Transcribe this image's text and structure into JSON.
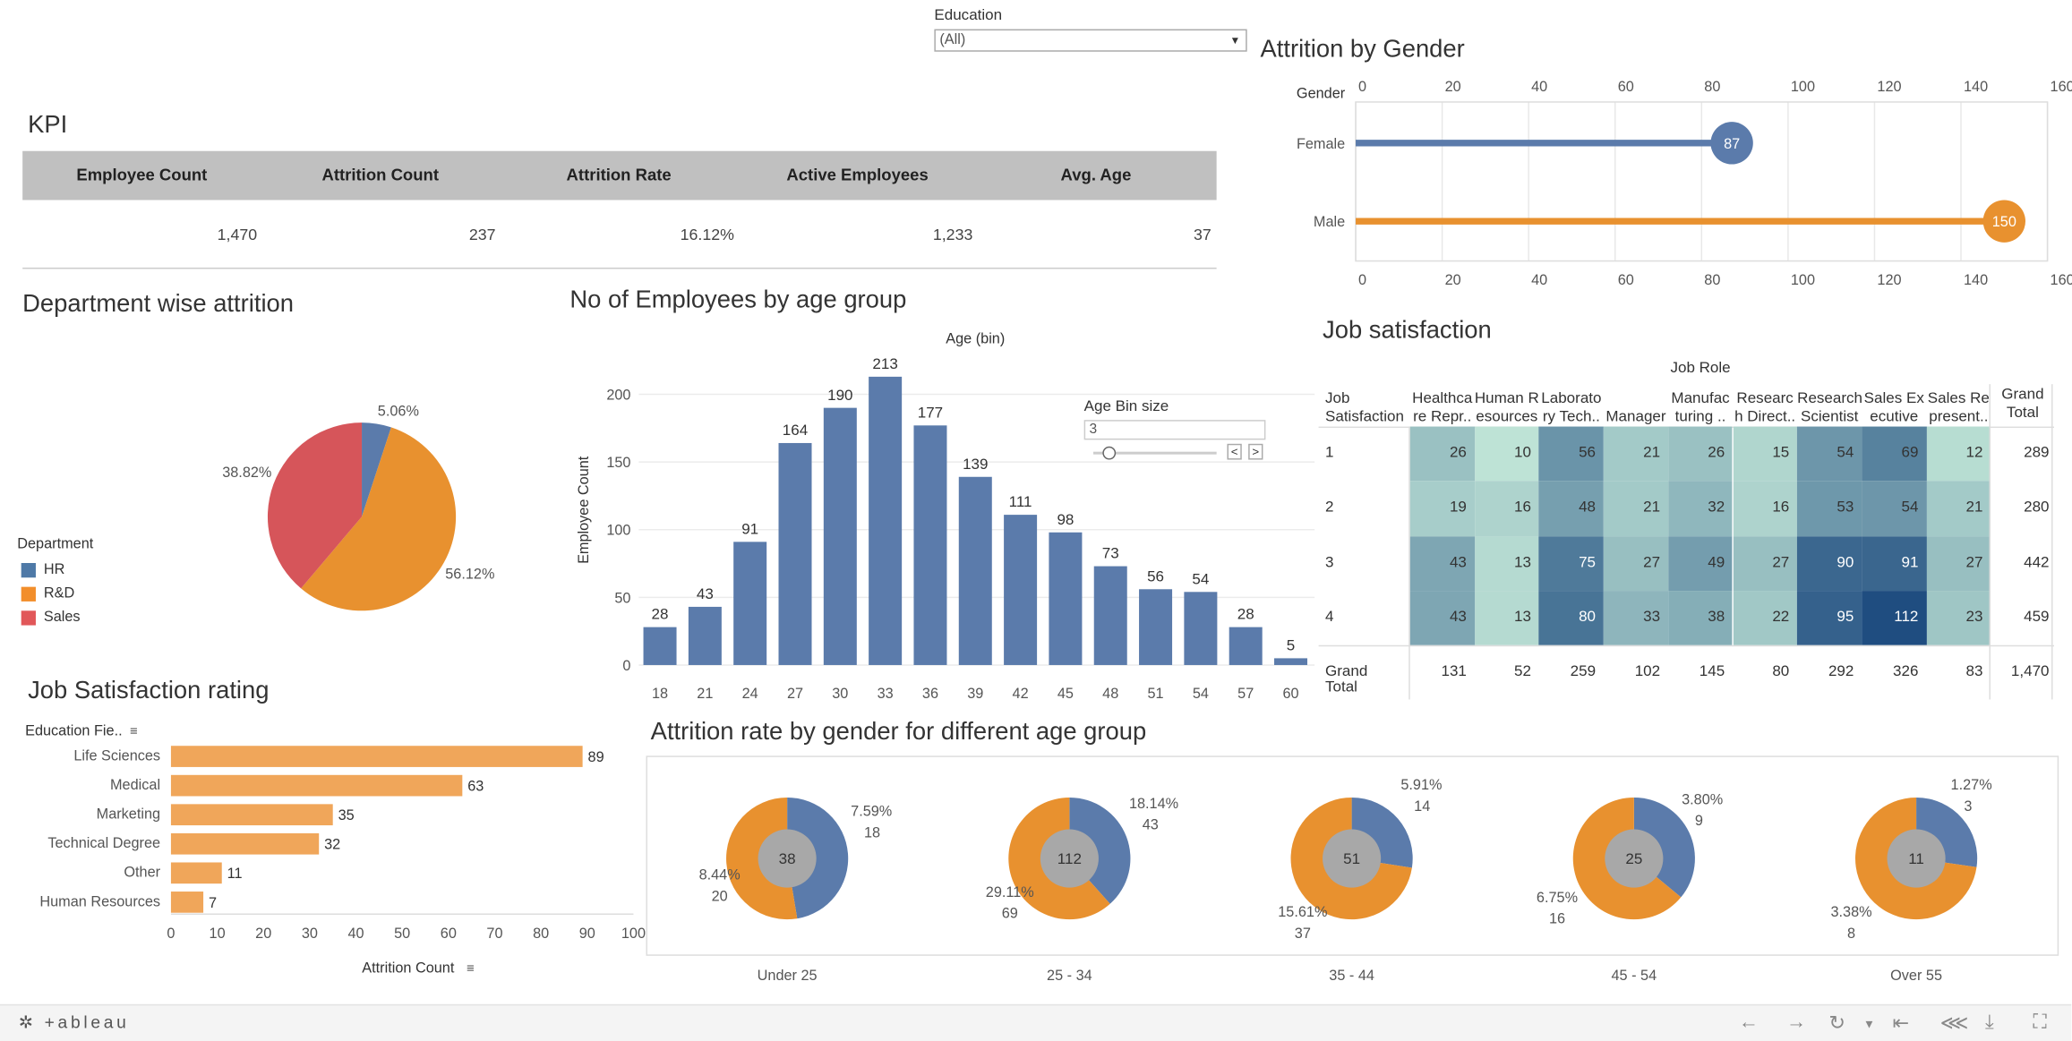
{
  "filter": {
    "label": "Education",
    "value": "(All)"
  },
  "kpi": {
    "title": "KPI",
    "headers": [
      "Employee Count",
      "Attrition Count",
      "Attrition Rate",
      "Active Employees",
      "Avg. Age"
    ],
    "values": [
      "1,470",
      "237",
      "16.12%",
      "1,233",
      "37"
    ]
  },
  "titles": {
    "gender": "Attrition by Gender",
    "department": "Department wise attrition",
    "age_group": "No of Employees by age group",
    "job_sat": "Job satisfaction",
    "edu_rating": "Job Satisfaction rating",
    "gender_age": "Attrition rate by gender for different age group"
  },
  "age_bin": {
    "label": "Age Bin size",
    "value": "3",
    "prev": "<",
    "next": ">"
  },
  "legend": {
    "title": "Department",
    "items": [
      {
        "name": "HR",
        "color": "#4e79a7"
      },
      {
        "name": "R&D",
        "color": "#f28e2b"
      },
      {
        "name": "Sales",
        "color": "#e15759"
      }
    ]
  },
  "chart_data": [
    {
      "id": "gender",
      "type": "lollipop",
      "title": "Attrition by Gender",
      "axis_header": "Gender",
      "categories": [
        "Female",
        "Male"
      ],
      "values": [
        87,
        150
      ],
      "colors": [
        "#5b7bab",
        "#e8912f"
      ],
      "xticks": [
        "0",
        "20",
        "40",
        "60",
        "80",
        "100",
        "120",
        "140",
        "160"
      ],
      "xlim": [
        0,
        160
      ]
    },
    {
      "id": "department",
      "type": "pie",
      "title": "Department wise attrition",
      "categories": [
        "HR",
        "R&D",
        "Sales"
      ],
      "values": [
        5.06,
        56.12,
        38.82
      ],
      "labels": [
        "5.06%",
        "56.12%",
        "38.82%"
      ],
      "colors": [
        "#5b7bab",
        "#e8912f",
        "#d6555a"
      ]
    },
    {
      "id": "age_group",
      "type": "bar",
      "title": "No of Employees by age group",
      "xlabel": "Age (bin)",
      "ylabel": "Employee Count",
      "categories": [
        "18",
        "21",
        "24",
        "27",
        "30",
        "33",
        "36",
        "39",
        "42",
        "45",
        "48",
        "51",
        "54",
        "57",
        "60"
      ],
      "values": [
        28,
        43,
        91,
        164,
        190,
        213,
        177,
        139,
        111,
        98,
        73,
        56,
        54,
        28,
        5
      ],
      "yticks": [
        "0",
        "50",
        "100",
        "150",
        "200"
      ],
      "ylim": [
        0,
        230
      ],
      "color": "#5b7bab"
    },
    {
      "id": "job_sat",
      "type": "heatmap",
      "title": "Job satisfaction",
      "column_group": "Job Role",
      "row_header": [
        "Job",
        "Satisfaction"
      ],
      "columns": [
        [
          "Healthca",
          "re Repr.."
        ],
        [
          "Human R",
          "esources"
        ],
        [
          "Laborato",
          "ry Tech.."
        ],
        [
          "",
          "Manager"
        ],
        [
          "Manufac",
          "turing .."
        ],
        [
          "Researc",
          "h Direct.."
        ],
        [
          "Research",
          "Scientist"
        ],
        [
          "Sales Ex",
          "ecutive"
        ],
        [
          "Sales Re",
          "present.."
        ]
      ],
      "total_header": [
        "Grand",
        "Total"
      ],
      "rows": [
        "1",
        "2",
        "3",
        "4"
      ],
      "values": [
        [
          26,
          10,
          56,
          21,
          26,
          15,
          54,
          69,
          12
        ],
        [
          19,
          16,
          48,
          21,
          32,
          16,
          53,
          54,
          21
        ],
        [
          43,
          13,
          75,
          27,
          49,
          27,
          90,
          91,
          27
        ],
        [
          43,
          13,
          80,
          33,
          38,
          22,
          95,
          112,
          23
        ]
      ],
      "row_totals": [
        "289",
        "280",
        "442",
        "459"
      ],
      "total_label": "Grand Total",
      "col_totals": [
        "131",
        "52",
        "259",
        "102",
        "145",
        "80",
        "292",
        "326",
        "83"
      ],
      "grand_total": "1,470"
    },
    {
      "id": "edu_rating",
      "type": "bar",
      "orientation": "horizontal",
      "title": "Job Satisfaction rating",
      "axis_header": "Education Fie..",
      "xlabel": "Attrition Count",
      "categories": [
        "Life Sciences",
        "Medical",
        "Marketing",
        "Technical Degree",
        "Other",
        "Human Resources"
      ],
      "values": [
        89,
        63,
        35,
        32,
        11,
        7
      ],
      "xticks": [
        "0",
        "10",
        "20",
        "30",
        "40",
        "50",
        "60",
        "70",
        "80",
        "90",
        "100"
      ],
      "xlim": [
        0,
        100
      ],
      "color": "#f0a65a"
    },
    {
      "id": "gender_age",
      "type": "pie",
      "title": "Attrition rate by gender for different age group",
      "groups": [
        {
          "name": "Under 25",
          "center": "38",
          "blue_pct": "7.59%",
          "blue_count": "18",
          "orange_pct": "8.44%",
          "orange_count": "20",
          "blue": 18,
          "orange": 20
        },
        {
          "name": "25 - 34",
          "center": "112",
          "blue_pct": "18.14%",
          "blue_count": "43",
          "orange_pct": "29.11%",
          "orange_count": "69",
          "blue": 43,
          "orange": 69
        },
        {
          "name": "35 - 44",
          "center": "51",
          "blue_pct": "5.91%",
          "blue_count": "14",
          "orange_pct": "15.61%",
          "orange_count": "37",
          "blue": 14,
          "orange": 37
        },
        {
          "name": "45 - 54",
          "center": "25",
          "blue_pct": "3.80%",
          "blue_count": "9",
          "orange_pct": "6.75%",
          "orange_count": "16",
          "blue": 9,
          "orange": 16
        },
        {
          "name": "Over 55",
          "center": "11",
          "blue_pct": "1.27%",
          "blue_count": "3",
          "orange_pct": "3.38%",
          "orange_count": "8",
          "blue": 3,
          "orange": 8
        }
      ],
      "colors": {
        "blue": "#5b7bab",
        "orange": "#e8912f",
        "hole": "#a8a8a8"
      }
    }
  ],
  "footer": {
    "logo": "+ableau"
  }
}
